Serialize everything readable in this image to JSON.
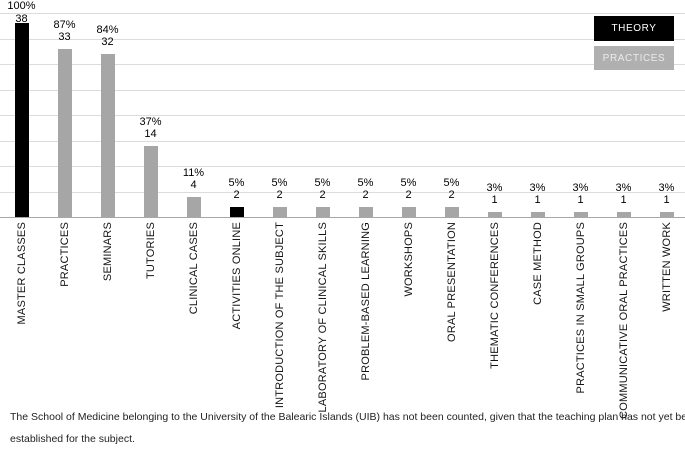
{
  "chart_data": {
    "type": "bar",
    "title": "",
    "categories": [
      "MASTER CLASSES",
      "PRACTICES",
      "SEMINARS",
      "TUTORIES",
      "CLINICAL CASES",
      "ACTIVITIES ONLINE",
      "INTRODUCTION OF THE SUBJECT",
      "LABORATORY OF CLINICAL SKILLS",
      "PROBLEM-BASED LEARNING",
      "WORKSHOPS",
      "ORAL PRESENTATION",
      "THEMATIC CONFERENCES",
      "CASE METHOD",
      "PRACTICES IN SMALL GROUPS",
      "COMMUNICATIVE ORAL PRACTICES",
      "WRITTEN WORK"
    ],
    "series": [
      {
        "name": "count",
        "values": [
          38,
          33,
          32,
          14,
          4,
          2,
          2,
          2,
          2,
          2,
          2,
          1,
          1,
          1,
          1,
          1
        ]
      },
      {
        "name": "percent",
        "values": [
          "100%",
          "87%",
          "84%",
          "37%",
          "11%",
          "5%",
          "5%",
          "5%",
          "5%",
          "5%",
          "5%",
          "3%",
          "3%",
          "3%",
          "3%",
          "3%"
        ]
      }
    ],
    "groups": [
      "theory",
      "practices",
      "practices",
      "practices",
      "practices",
      "theory",
      "practices",
      "practices",
      "practices",
      "practices",
      "practices",
      "practices",
      "practices",
      "practices",
      "practices",
      "practices"
    ],
    "colors": {
      "theory": "#000000",
      "practices": "#a6a6a6"
    },
    "ylim": [
      0,
      40
    ],
    "gridline_step": 5,
    "grid": true,
    "xlabel": "",
    "ylabel": "",
    "legend_position": "top-right",
    "legend": [
      {
        "label": "THEORY",
        "color": "#000000"
      },
      {
        "label": "PRACTICES",
        "color": "#a6a6a6"
      }
    ]
  },
  "footnote": {
    "line1": "The School of Medicine belonging to the University of the Balearic Islands (UIB) has not been counted, given that the teaching plan has not yet been",
    "line2": "established for the subject."
  }
}
